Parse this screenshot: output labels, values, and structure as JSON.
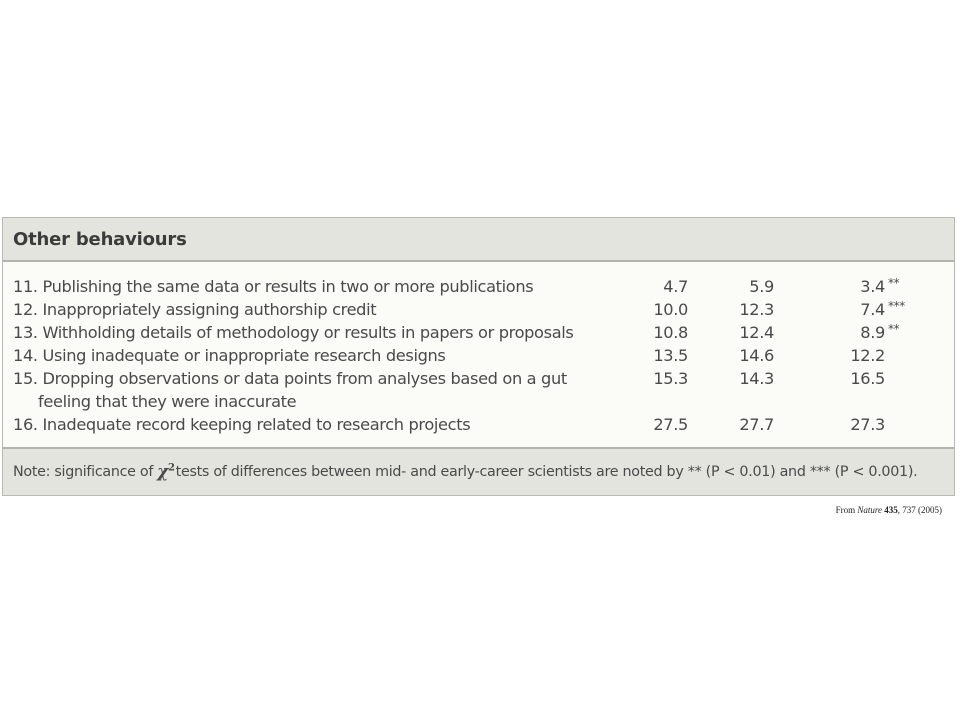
{
  "table": {
    "title": "Other behaviours",
    "rows": [
      {
        "label": "11. Publishing the same data or results in two or more publications",
        "mid": "4.7",
        "early": "5.9",
        "all": "3.4",
        "sig": "**"
      },
      {
        "label": "12. Inappropriately assigning authorship credit",
        "mid": "10.0",
        "early": "12.3",
        "all": "7.4",
        "sig": "***"
      },
      {
        "label": "13. Withholding details of methodology or results in papers or proposals",
        "mid": "10.8",
        "early": "12.4",
        "all": "8.9",
        "sig": "**"
      },
      {
        "label": "14. Using inadequate or inappropriate research designs",
        "mid": "13.5",
        "early": "14.6",
        "all": "12.2",
        "sig": ""
      },
      {
        "label": "15. Dropping observations or data points from analyses based on a gut",
        "label_cont": "feeling that they were inaccurate",
        "mid": "15.3",
        "early": "14.3",
        "all": "16.5",
        "sig": ""
      },
      {
        "label": "16. Inadequate record keeping related to research projects",
        "mid": "27.5",
        "early": "27.7",
        "all": "27.3",
        "sig": ""
      }
    ],
    "note": {
      "prefix": "Note:  significance of",
      "chi": "χ",
      "chi_sup": "2",
      "suffix": "tests of differences between mid- and early-career scientists are noted by ** (P < 0.01) and *** (P < 0.001)."
    }
  },
  "source": {
    "from": "From",
    "journal": "Nature",
    "volume": "435",
    "rest": ", 737 (2005)"
  }
}
